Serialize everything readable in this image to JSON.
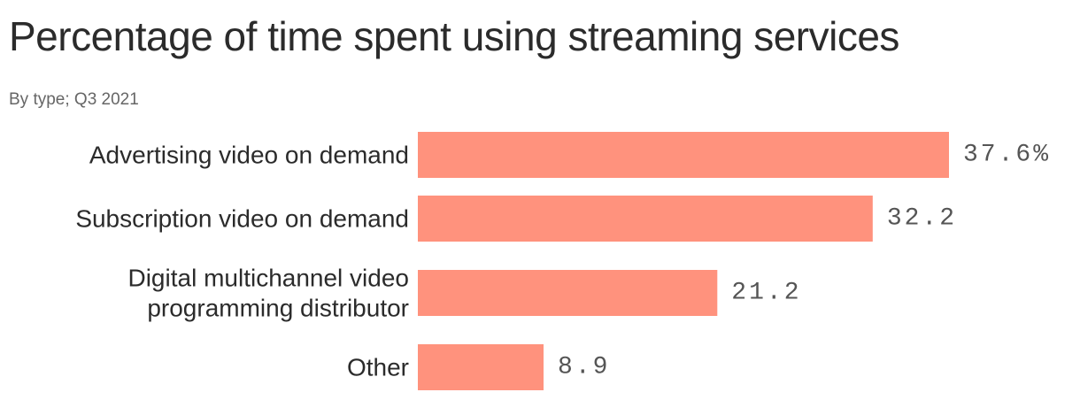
{
  "chart_data": {
    "type": "bar",
    "orientation": "horizontal",
    "title": "Percentage of time spent using streaming services",
    "subtitle": "By type; Q3 2021",
    "categories": [
      [
        "Advertising video on demand"
      ],
      [
        "Subscription video on demand"
      ],
      [
        "Digital multichannel video",
        "programming distributor"
      ],
      [
        "Other"
      ]
    ],
    "values": [
      37.6,
      32.2,
      21.2,
      8.9
    ],
    "value_labels": [
      "37.6%",
      "32.2",
      "21.2",
      "8.9"
    ],
    "xlim": [
      0,
      37.6
    ],
    "grid": false,
    "legend": "none",
    "bar_color": "#ff927d"
  }
}
